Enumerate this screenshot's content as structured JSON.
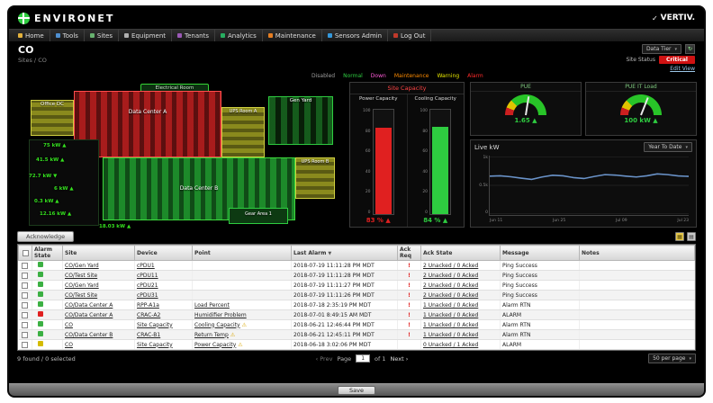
{
  "header": {
    "logo": "ENVIRONET",
    "brand": "VERTIV."
  },
  "nav": {
    "items": [
      "Home",
      "Tools",
      "Sites",
      "Equipment",
      "Tenants",
      "Analytics",
      "Maintenance",
      "Sensors Admin",
      "Log Out"
    ]
  },
  "subheader": {
    "title": "CO",
    "breadcrumb": "Sites / CO",
    "tier_select": "Data Tier",
    "status_label": "Site Status",
    "status_value": "Critical",
    "edit_view": "Edit View"
  },
  "legend": {
    "items": [
      {
        "label": "Disabled",
        "color": "#9e9e9e"
      },
      {
        "label": "Normal",
        "color": "#2ecc40"
      },
      {
        "label": "Down",
        "color": "#ff5bd8"
      },
      {
        "label": "Maintenance",
        "color": "#ff8c00"
      },
      {
        "label": "Warning",
        "color": "#e6e600"
      },
      {
        "label": "Alarm",
        "color": "#ff2a2a"
      }
    ]
  },
  "floorplan": {
    "rooms": {
      "electrical": "Electrical Room",
      "office": "Office DC",
      "dca": "Data Center A",
      "upsa": "UPS Room A",
      "gen": "Gen Yard",
      "dcb": "Data Center B",
      "upsb": "UPS Room B",
      "gear": "Gear Area 1"
    },
    "readouts": [
      "75 kW ▲",
      "41.5 kW ▲",
      "72.7 kW ▼",
      "6 kW ▲",
      "0.3 kW ▲",
      "12.16 kW ▲",
      "18.03 kW ▲"
    ]
  },
  "capacity": {
    "title": "Site Capacity",
    "ticks": [
      "100",
      "80",
      "60",
      "40",
      "20",
      "0"
    ],
    "gauges": [
      {
        "label": "Power Capacity",
        "value": 83,
        "display": "83 % ▲",
        "color": "#e02020"
      },
      {
        "label": "Cooling Capacity",
        "value": 84,
        "display": "84 % ▲",
        "color": "#2ecc40"
      }
    ]
  },
  "gauges": [
    {
      "label": "PUE",
      "value": "1.65 ▲",
      "pct": 55
    },
    {
      "label": "PUE IT Load",
      "value": "100 kW ▲",
      "pct": 62
    }
  ],
  "chart_data": {
    "type": "line",
    "title": "Live kW",
    "range_select": "Year To Date",
    "x_ticks": [
      "Jun 11",
      "Jun 25",
      "Jul 09",
      "Jul 23"
    ],
    "y_ticks": [
      "1k",
      "0.5k",
      "0"
    ],
    "y_max": 1000,
    "values": [
      655,
      660,
      645,
      620,
      600,
      640,
      670,
      660,
      630,
      615,
      650,
      680,
      672,
      655,
      640,
      660,
      692,
      680,
      658,
      650
    ],
    "line_color": "#6a93c9"
  },
  "alarm_toolbar": {
    "acknowledge": "Acknowledge"
  },
  "table": {
    "columns": [
      "Alarm State",
      "Site",
      "Device",
      "Point",
      "Last Alarm",
      "Ack Req",
      "Ack State",
      "Message",
      "Notes"
    ],
    "sort_column": "Last Alarm",
    "rows": [
      {
        "state": "normal",
        "site": "CO/Gen Yard",
        "device": "cPDU1",
        "point": "",
        "warn": false,
        "last_alarm": "2018-07-19 11:11:28 PM MDT",
        "ack_req": "!",
        "ack_state": "2 Unacked / 0 Acked",
        "message": "Ping Success",
        "notes": ""
      },
      {
        "state": "normal",
        "site": "CO/Test Site",
        "device": "cPDU11",
        "point": "",
        "warn": false,
        "last_alarm": "2018-07-19 11:11:28 PM MDT",
        "ack_req": "!",
        "ack_state": "2 Unacked / 0 Acked",
        "message": "Ping Success",
        "notes": ""
      },
      {
        "state": "normal",
        "site": "CO/Gen Yard",
        "device": "cPDU21",
        "point": "",
        "warn": false,
        "last_alarm": "2018-07-19 11:11:27 PM MDT",
        "ack_req": "!",
        "ack_state": "2 Unacked / 0 Acked",
        "message": "Ping Success",
        "notes": ""
      },
      {
        "state": "normal",
        "site": "CO/Test Site",
        "device": "cPDU31",
        "point": "",
        "warn": false,
        "last_alarm": "2018-07-19 11:11:26 PM MDT",
        "ack_req": "!",
        "ack_state": "2 Unacked / 0 Acked",
        "message": "Ping Success",
        "notes": ""
      },
      {
        "state": "normal",
        "site": "CO/Data Center A",
        "device": "RPP-A1a",
        "point": "Load Percent",
        "warn": false,
        "last_alarm": "2018-07-18 2:35:19 PM MDT",
        "ack_req": "!",
        "ack_state": "1 Unacked / 0 Acked",
        "message": "Alarm RTN",
        "notes": ""
      },
      {
        "state": "alarm",
        "site": "CO/Data Center A",
        "device": "CRAC-A2",
        "point": "Humidifier Problem",
        "warn": false,
        "last_alarm": "2018-07-01 8:49:15 AM MDT",
        "ack_req": "!",
        "ack_state": "1 Unacked / 0 Acked",
        "message": "ALARM",
        "notes": ""
      },
      {
        "state": "normal",
        "site": "CO",
        "device": "Site Capacity",
        "point": "Cooling Capacity",
        "warn": true,
        "last_alarm": "2018-06-21 12:46:44 PM MDT",
        "ack_req": "!",
        "ack_state": "1 Unacked / 0 Acked",
        "message": "Alarm RTN",
        "notes": ""
      },
      {
        "state": "normal",
        "site": "CO/Data Center B",
        "device": "CRAC-B1",
        "point": "Return Temp",
        "warn": true,
        "last_alarm": "2018-06-21 12:45:11 PM MDT",
        "ack_req": "!",
        "ack_state": "1 Unacked / 0 Acked",
        "message": "Alarm RTN",
        "notes": ""
      },
      {
        "state": "warning",
        "site": "CO",
        "device": "Site Capacity",
        "point": "Power Capacity",
        "warn": true,
        "last_alarm": "2018-06-18 3:02:06 PM MDT",
        "ack_req": "",
        "ack_state": "0 Unacked / 1 Acked",
        "message": "ALARM",
        "notes": ""
      }
    ]
  },
  "table_footer": {
    "found": "9 found / 0 selected",
    "prev": "‹ Prev",
    "page_label": "Page",
    "page_value": "1",
    "of_label": "of 1",
    "next": "Next ›",
    "per_page": "50 per page"
  },
  "bottombar": {
    "save": "Save"
  },
  "colors": {
    "normal": "#3cb043",
    "alarm": "#e02020",
    "warning": "#d4bb00"
  }
}
